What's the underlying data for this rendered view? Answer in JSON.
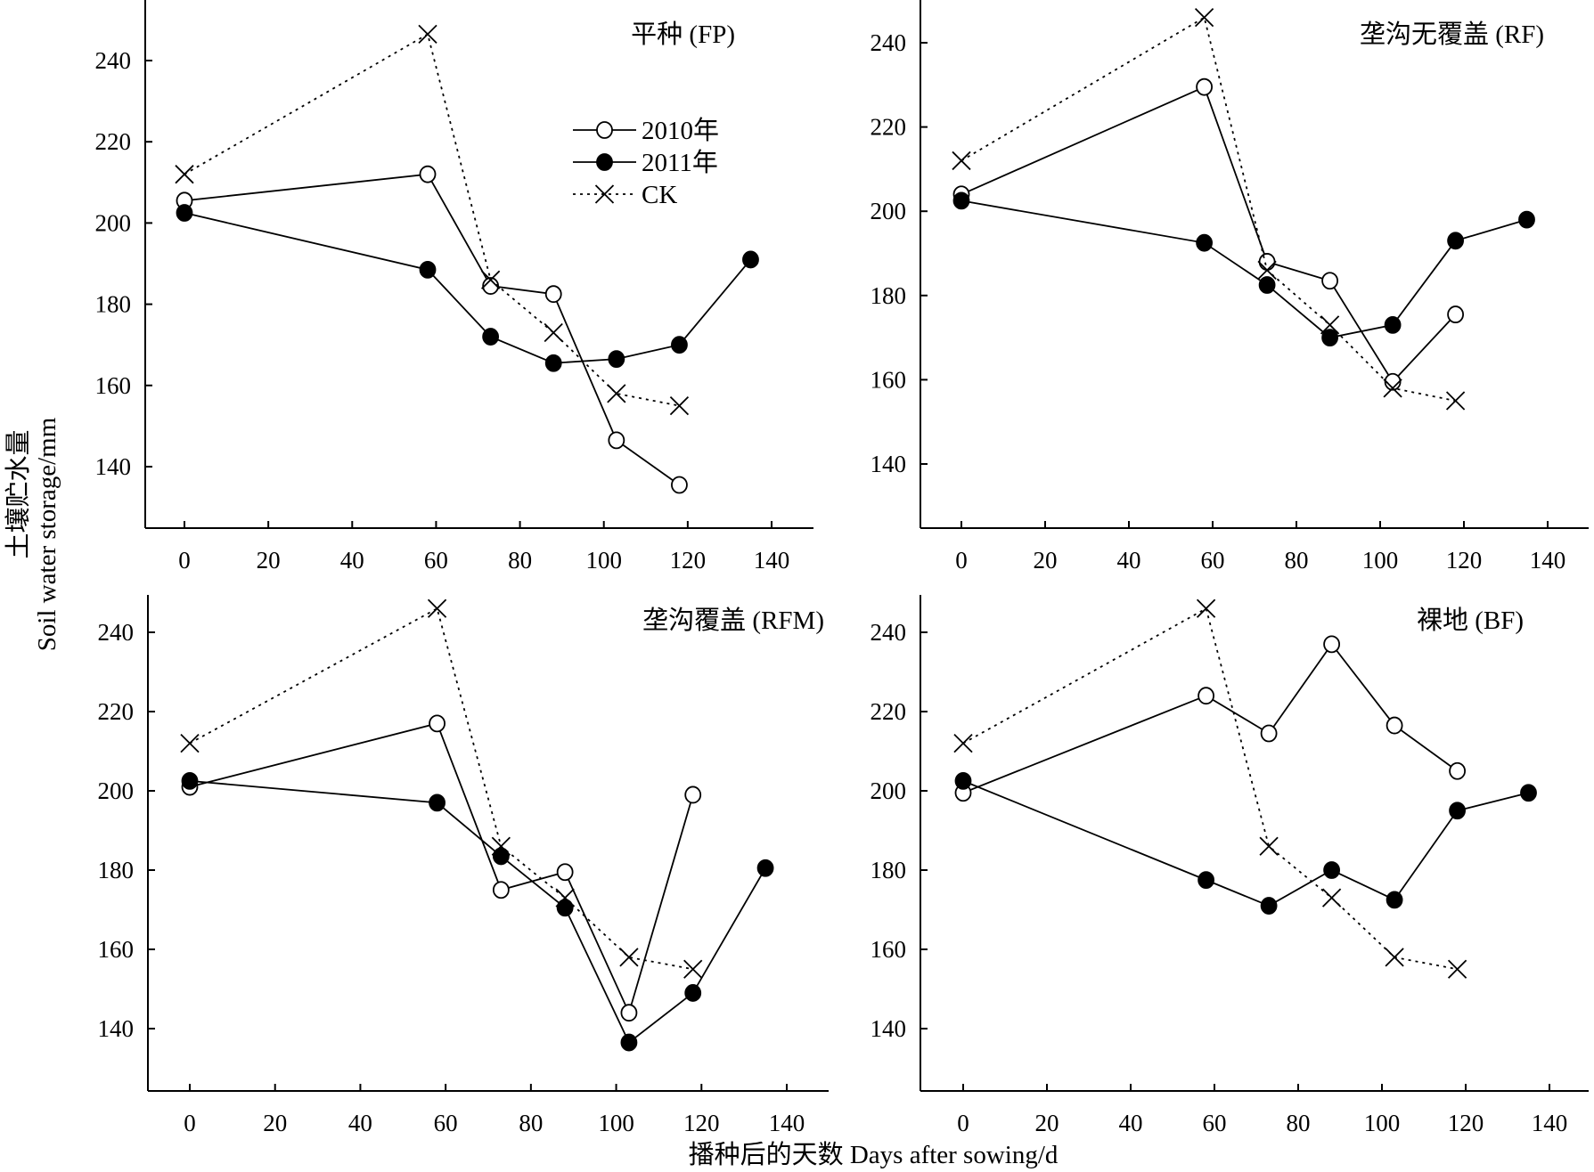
{
  "figure": {
    "y_axis_title_cn": "土壤贮水量",
    "y_axis_title_en": "Soil water storage/mm",
    "x_axis_title": "播种后的天数 Days after sowing/d"
  },
  "legend": {
    "items": [
      {
        "label": "2010年",
        "marker": "open-circle",
        "line": "solid"
      },
      {
        "label": "2011年",
        "marker": "filled-circle",
        "line": "solid"
      },
      {
        "label": "CK",
        "marker": "cross",
        "line": "dotted"
      }
    ]
  },
  "colors": {
    "ink": "#000000",
    "background": "#ffffff"
  },
  "chart_data": [
    {
      "type": "line",
      "title": "平种 (FP)",
      "xlabel": "",
      "ylabel": "",
      "xlim": [
        -10,
        150
      ],
      "ylim": [
        125,
        250
      ],
      "xticks": [
        0,
        20,
        40,
        60,
        80,
        100,
        120,
        140
      ],
      "yticks": [
        140,
        160,
        180,
        200,
        220,
        240
      ],
      "series": [
        {
          "name": "2010年",
          "x": [
            0,
            58,
            73,
            88,
            103,
            118
          ],
          "y": [
            205.5,
            212,
            184.5,
            182.5,
            146.5,
            135.5
          ]
        },
        {
          "name": "2011年",
          "x": [
            0,
            58,
            73,
            88,
            103,
            118,
            135
          ],
          "y": [
            202.5,
            188.5,
            172,
            165.5,
            166.5,
            170,
            191
          ]
        },
        {
          "name": "CK",
          "x": [
            0,
            58,
            73,
            88,
            103,
            118
          ],
          "y": [
            212,
            246.5,
            186,
            173,
            158,
            155
          ]
        }
      ]
    },
    {
      "type": "line",
      "title": "垄沟无覆盖 (RF)",
      "xlabel": "",
      "ylabel": "",
      "xlim": [
        -10,
        150
      ],
      "ylim": [
        125,
        250
      ],
      "xticks": [
        0,
        20,
        40,
        60,
        80,
        100,
        120,
        140
      ],
      "yticks": [
        140,
        160,
        180,
        200,
        220,
        240
      ],
      "series": [
        {
          "name": "2010年",
          "x": [
            0,
            58,
            73,
            88,
            103,
            118
          ],
          "y": [
            204,
            229.5,
            188,
            183.5,
            159.5,
            175.5
          ]
        },
        {
          "name": "2011年",
          "x": [
            0,
            58,
            73,
            88,
            103,
            118,
            135
          ],
          "y": [
            202.5,
            192.5,
            182.5,
            170,
            173,
            193,
            198
          ]
        },
        {
          "name": "CK",
          "x": [
            0,
            58,
            73,
            88,
            103,
            118
          ],
          "y": [
            212,
            246,
            186,
            173,
            158,
            155
          ]
        }
      ]
    },
    {
      "type": "line",
      "title": "垄沟覆盖 (RFM)",
      "xlabel": "",
      "ylabel": "",
      "xlim": [
        -10,
        150
      ],
      "ylim": [
        125,
        250
      ],
      "xticks": [
        0,
        20,
        40,
        60,
        80,
        100,
        120,
        140
      ],
      "yticks": [
        140,
        160,
        180,
        200,
        220,
        240
      ],
      "series": [
        {
          "name": "2010年",
          "x": [
            0,
            58,
            73,
            88,
            103,
            118
          ],
          "y": [
            201,
            217,
            175,
            179.5,
            144,
            199
          ]
        },
        {
          "name": "2011年",
          "x": [
            0,
            58,
            73,
            88,
            103,
            118,
            135
          ],
          "y": [
            202.5,
            197,
            183.5,
            170.5,
            136.5,
            149,
            180.5
          ]
        },
        {
          "name": "CK",
          "x": [
            0,
            58,
            73,
            88,
            103,
            118
          ],
          "y": [
            212,
            246,
            186,
            173,
            158,
            155
          ]
        }
      ]
    },
    {
      "type": "line",
      "title": "裸地 (BF)",
      "xlabel": "",
      "ylabel": "",
      "xlim": [
        -10,
        150
      ],
      "ylim": [
        125,
        250
      ],
      "xticks": [
        0,
        20,
        40,
        60,
        80,
        100,
        120,
        140
      ],
      "yticks": [
        140,
        160,
        180,
        200,
        220,
        240
      ],
      "series": [
        {
          "name": "2010年",
          "x": [
            0,
            58,
            73,
            88,
            103,
            118
          ],
          "y": [
            199.5,
            224,
            214.5,
            237,
            216.5,
            205
          ]
        },
        {
          "name": "2011年",
          "x": [
            0,
            58,
            73,
            88,
            103,
            118,
            135
          ],
          "y": [
            202.5,
            177.5,
            171,
            180,
            172.5,
            195,
            199.5
          ]
        },
        {
          "name": "CK",
          "x": [
            0,
            58,
            73,
            88,
            103,
            118
          ],
          "y": [
            212,
            246,
            186,
            173,
            158,
            155
          ]
        }
      ]
    }
  ]
}
